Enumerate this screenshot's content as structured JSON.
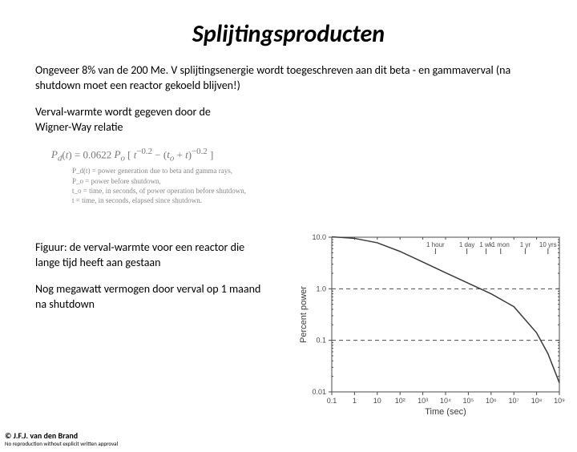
{
  "title": "Splijtingsproducten",
  "intro": "Ongeveer 8% van de 200 Me. V splijtingsenergie wordt toegeschreven aan dit beta - en gammaverval (na shutdown moet een reactor gekoeld blijven!)",
  "wigner_text": "Verval-warmte wordt gegeven door de Wigner-Way relatie",
  "equation": "P_d(t) = 0.0622 P_o [ t^{-0.2} − (t_o + t)^{-0.2} ]",
  "legend": {
    "l1": "P_d(t) = power generation due to beta and gamma rays,",
    "l2": "P_o = power before shutdown,",
    "l3": "t_o = time, in seconds, of power operation before shutdown,",
    "l4": "t = time, in seconds, elapsed since shutdown."
  },
  "figure_caption": "Figuur: de verval-warmte voor een reactor die lange tijd heeft aan gestaan",
  "note_text": "Nog megawatt vermogen door verval op 1 maand na shutdown",
  "footer": {
    "copyright": "© J.F.J. van den Brand",
    "sub": "No reproduction without explicit written approval"
  },
  "chart": {
    "type": "line-loglog",
    "xlabel": "Time (sec)",
    "ylabel": "Percent power",
    "background": "#ffffff",
    "axis_color": "#4a4a4a",
    "curve_color": "#3a3a3a",
    "x_ticks_exp": [
      -1,
      0,
      1,
      2,
      3,
      4,
      5,
      6,
      7,
      8,
      9
    ],
    "y_ticks": [
      0.01,
      0.1,
      1.0,
      10.0
    ],
    "y_ticklabels": [
      "0.01",
      "0.1",
      "1.0",
      "10.0"
    ],
    "time_markers": [
      "1 hour",
      "1 day",
      "1 wk",
      "1 mon",
      "1 yr",
      "10 yrs"
    ],
    "time_marker_x_exp": [
      3.556,
      4.937,
      5.78,
      6.42,
      7.5,
      8.5
    ],
    "curve_points": [
      {
        "x": -1,
        "y": 10.2
      },
      {
        "x": 0,
        "y": 9.5
      },
      {
        "x": 1,
        "y": 7.8
      },
      {
        "x": 2,
        "y": 5.3
      },
      {
        "x": 3,
        "y": 3.3
      },
      {
        "x": 4,
        "y": 2.05
      },
      {
        "x": 5,
        "y": 1.28
      },
      {
        "x": 6,
        "y": 0.8
      },
      {
        "x": 7,
        "y": 0.45
      },
      {
        "x": 8,
        "y": 0.14
      },
      {
        "x": 8.5,
        "y": 0.055
      },
      {
        "x": 9,
        "y": 0.015
      }
    ]
  }
}
